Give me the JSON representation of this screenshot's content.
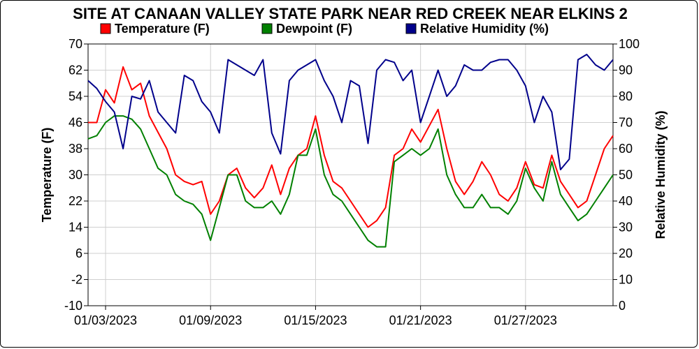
{
  "chart_data": {
    "type": "line",
    "title": "SITE AT CANAAN VALLEY STATE PARK NEAR RED CREEK NEAR ELKINS 2",
    "ylabel": "Temperature (F)",
    "ylabel_right": "Relative Humidity (%)",
    "ylim": [
      -10,
      70
    ],
    "ylim_right": [
      0,
      100
    ],
    "y_ticks": [
      -10,
      -2,
      6,
      14,
      22,
      30,
      38,
      46,
      54,
      62,
      70
    ],
    "y_ticks_right": [
      0,
      10,
      20,
      30,
      40,
      50,
      60,
      70,
      80,
      90,
      100
    ],
    "xlim": [
      "2023-01-02T00:00",
      "2023-02-01T00:00"
    ],
    "x_ticks": [
      "2023-01-03",
      "2023-01-09",
      "2023-01-15",
      "2023-01-21",
      "2023-01-27"
    ],
    "x_tick_labels": [
      "01/03/2023",
      "01/09/2023",
      "01/15/2023",
      "01/21/2023",
      "01/27/2023"
    ],
    "grid": true,
    "legend_position": "top",
    "series": [
      {
        "name": "Temperature (F)",
        "axis": "left",
        "color": "#ff0000",
        "x": [
          "2023-01-02T00:00",
          "2023-01-02T12:00",
          "2023-01-03T00:00",
          "2023-01-03T12:00",
          "2023-01-04T00:00",
          "2023-01-04T12:00",
          "2023-01-05T00:00",
          "2023-01-05T12:00",
          "2023-01-06T00:00",
          "2023-01-06T12:00",
          "2023-01-07T00:00",
          "2023-01-07T12:00",
          "2023-01-08T00:00",
          "2023-01-08T12:00",
          "2023-01-09T00:00",
          "2023-01-09T12:00",
          "2023-01-10T00:00",
          "2023-01-10T12:00",
          "2023-01-11T00:00",
          "2023-01-11T12:00",
          "2023-01-12T00:00",
          "2023-01-12T12:00",
          "2023-01-13T00:00",
          "2023-01-13T12:00",
          "2023-01-14T00:00",
          "2023-01-14T12:00",
          "2023-01-15T00:00",
          "2023-01-15T12:00",
          "2023-01-16T00:00",
          "2023-01-16T12:00",
          "2023-01-17T00:00",
          "2023-01-17T12:00",
          "2023-01-18T00:00",
          "2023-01-18T12:00",
          "2023-01-19T00:00",
          "2023-01-19T12:00",
          "2023-01-20T00:00",
          "2023-01-20T12:00",
          "2023-01-21T00:00",
          "2023-01-21T12:00",
          "2023-01-22T00:00",
          "2023-01-22T12:00",
          "2023-01-23T00:00",
          "2023-01-23T12:00",
          "2023-01-24T00:00",
          "2023-01-24T12:00",
          "2023-01-25T00:00",
          "2023-01-25T12:00",
          "2023-01-26T00:00",
          "2023-01-26T12:00",
          "2023-01-27T00:00",
          "2023-01-27T12:00",
          "2023-01-28T00:00",
          "2023-01-28T12:00",
          "2023-01-29T00:00",
          "2023-01-29T12:00",
          "2023-01-30T00:00",
          "2023-01-30T12:00",
          "2023-01-31T00:00",
          "2023-01-31T12:00",
          "2023-02-01T00:00"
        ],
        "values": [
          46,
          46,
          56,
          52,
          63,
          56,
          58,
          48,
          43,
          38,
          30,
          28,
          27,
          28,
          18,
          22,
          30,
          32,
          26,
          23,
          26,
          33,
          24,
          32,
          36,
          38,
          48,
          36,
          28,
          26,
          22,
          18,
          14,
          16,
          20,
          36,
          38,
          44,
          40,
          45,
          50,
          38,
          28,
          24,
          28,
          34,
          30,
          24,
          22,
          26,
          34,
          27,
          26,
          36,
          28,
          24,
          20,
          22,
          30,
          38,
          42
        ]
      },
      {
        "name": "Dewpoint (F)",
        "axis": "left",
        "color": "#008000",
        "x": [
          "2023-01-02T00:00",
          "2023-01-02T12:00",
          "2023-01-03T00:00",
          "2023-01-03T12:00",
          "2023-01-04T00:00",
          "2023-01-04T12:00",
          "2023-01-05T00:00",
          "2023-01-05T12:00",
          "2023-01-06T00:00",
          "2023-01-06T12:00",
          "2023-01-07T00:00",
          "2023-01-07T12:00",
          "2023-01-08T00:00",
          "2023-01-08T12:00",
          "2023-01-09T00:00",
          "2023-01-09T12:00",
          "2023-01-10T00:00",
          "2023-01-10T12:00",
          "2023-01-11T00:00",
          "2023-01-11T12:00",
          "2023-01-12T00:00",
          "2023-01-12T12:00",
          "2023-01-13T00:00",
          "2023-01-13T12:00",
          "2023-01-14T00:00",
          "2023-01-14T12:00",
          "2023-01-15T00:00",
          "2023-01-15T12:00",
          "2023-01-16T00:00",
          "2023-01-16T12:00",
          "2023-01-17T00:00",
          "2023-01-17T12:00",
          "2023-01-18T00:00",
          "2023-01-18T12:00",
          "2023-01-19T00:00",
          "2023-01-19T12:00",
          "2023-01-20T00:00",
          "2023-01-20T12:00",
          "2023-01-21T00:00",
          "2023-01-21T12:00",
          "2023-01-22T00:00",
          "2023-01-22T12:00",
          "2023-01-23T00:00",
          "2023-01-23T12:00",
          "2023-01-24T00:00",
          "2023-01-24T12:00",
          "2023-01-25T00:00",
          "2023-01-25T12:00",
          "2023-01-26T00:00",
          "2023-01-26T12:00",
          "2023-01-27T00:00",
          "2023-01-27T12:00",
          "2023-01-28T00:00",
          "2023-01-28T12:00",
          "2023-01-29T00:00",
          "2023-01-29T12:00",
          "2023-01-30T00:00",
          "2023-01-30T12:00",
          "2023-01-31T00:00",
          "2023-01-31T12:00",
          "2023-02-01T00:00"
        ],
        "values": [
          41,
          42,
          46,
          48,
          48,
          47,
          44,
          38,
          32,
          30,
          24,
          22,
          21,
          18,
          10,
          20,
          30,
          30,
          22,
          20,
          20,
          22,
          18,
          24,
          36,
          36,
          44,
          30,
          24,
          22,
          18,
          14,
          10,
          8,
          8,
          34,
          36,
          38,
          36,
          38,
          44,
          30,
          24,
          20,
          20,
          24,
          20,
          20,
          18,
          22,
          32,
          26,
          22,
          34,
          24,
          20,
          16,
          18,
          22,
          26,
          30
        ]
      },
      {
        "name": "Relative Humidity (%)",
        "axis": "right",
        "color": "#00008b",
        "x": [
          "2023-01-02T00:00",
          "2023-01-02T12:00",
          "2023-01-03T00:00",
          "2023-01-03T12:00",
          "2023-01-04T00:00",
          "2023-01-04T12:00",
          "2023-01-05T00:00",
          "2023-01-05T12:00",
          "2023-01-06T00:00",
          "2023-01-06T12:00",
          "2023-01-07T00:00",
          "2023-01-07T12:00",
          "2023-01-08T00:00",
          "2023-01-08T12:00",
          "2023-01-09T00:00",
          "2023-01-09T12:00",
          "2023-01-10T00:00",
          "2023-01-10T12:00",
          "2023-01-11T00:00",
          "2023-01-11T12:00",
          "2023-01-12T00:00",
          "2023-01-12T12:00",
          "2023-01-13T00:00",
          "2023-01-13T12:00",
          "2023-01-14T00:00",
          "2023-01-14T12:00",
          "2023-01-15T00:00",
          "2023-01-15T12:00",
          "2023-01-16T00:00",
          "2023-01-16T12:00",
          "2023-01-17T00:00",
          "2023-01-17T12:00",
          "2023-01-18T00:00",
          "2023-01-18T12:00",
          "2023-01-19T00:00",
          "2023-01-19T12:00",
          "2023-01-20T00:00",
          "2023-01-20T12:00",
          "2023-01-21T00:00",
          "2023-01-21T12:00",
          "2023-01-22T00:00",
          "2023-01-22T12:00",
          "2023-01-23T00:00",
          "2023-01-23T12:00",
          "2023-01-24T00:00",
          "2023-01-24T12:00",
          "2023-01-25T00:00",
          "2023-01-25T12:00",
          "2023-01-26T00:00",
          "2023-01-26T12:00",
          "2023-01-27T00:00",
          "2023-01-27T12:00",
          "2023-01-28T00:00",
          "2023-01-28T12:00",
          "2023-01-29T00:00",
          "2023-01-29T12:00",
          "2023-01-30T00:00",
          "2023-01-30T12:00",
          "2023-01-31T00:00",
          "2023-01-31T12:00",
          "2023-02-01T00:00"
        ],
        "values": [
          86,
          83,
          78,
          74,
          60,
          80,
          79,
          86,
          74,
          70,
          66,
          88,
          86,
          78,
          74,
          66,
          94,
          92,
          90,
          88,
          94,
          66,
          58,
          86,
          90,
          92,
          94,
          86,
          80,
          70,
          86,
          84,
          62,
          90,
          94,
          93,
          86,
          90,
          70,
          80,
          90,
          80,
          84,
          92,
          90,
          90,
          93,
          94,
          94,
          90,
          84,
          70,
          80,
          74,
          52,
          56,
          94,
          96,
          92,
          90,
          94
        ]
      }
    ]
  }
}
